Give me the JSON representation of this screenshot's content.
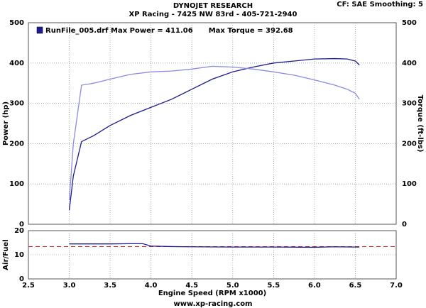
{
  "header": {
    "title": "DYNOJET RESEARCH",
    "subtitle": "XP Racing - 7425 NW 83rd - 405-721-2940",
    "settings": "CF: SAE  Smoothing: 5"
  },
  "footer": "www.xp-racing.com",
  "chart_data": [
    {
      "type": "line",
      "ylabel": "Power (hp)",
      "y2label": "Torque (ft-lbs)",
      "xlim": [
        2.5,
        7.0
      ],
      "ylim": [
        0,
        500
      ],
      "yticks": [
        0,
        100,
        200,
        300,
        400,
        500
      ],
      "y2lim": [
        0,
        500
      ],
      "y2ticks": [
        0,
        100,
        200,
        300,
        400,
        500
      ],
      "grid": true,
      "x": [
        3.0,
        3.05,
        3.15,
        3.3,
        3.5,
        3.75,
        4.0,
        4.25,
        4.5,
        4.75,
        5.0,
        5.25,
        5.5,
        5.75,
        6.0,
        6.25,
        6.4,
        6.5,
        6.55
      ],
      "series": [
        {
          "name": "RunFile_005.drf Max Power = 411.06",
          "color": "#1c1c8c",
          "values": [
            35,
            120,
            205,
            220,
            245,
            270,
            290,
            310,
            335,
            360,
            378,
            390,
            400,
            405,
            410,
            411,
            410,
            405,
            395
          ]
        },
        {
          "name": "Max Torque = 392.68",
          "color": "#8a8ae0",
          "axis": "y2",
          "values": [
            60,
            200,
            345,
            350,
            360,
            372,
            378,
            380,
            385,
            392,
            390,
            385,
            378,
            370,
            358,
            345,
            335,
            325,
            310
          ]
        }
      ]
    },
    {
      "type": "line",
      "ylabel": "Air/Fuel",
      "xlabel": "Engine Speed (RPM x1000)",
      "xlim": [
        2.5,
        7.0
      ],
      "xticks": [
        2.5,
        {
          "value": 3,
          "label": "3.0"
        },
        3.5,
        {
          "value": 4,
          "label": "4.0"
        },
        4.5,
        {
          "value": 5,
          "label": "5.0"
        },
        5.5,
        {
          "value": 6,
          "label": "6.0"
        },
        6.5,
        {
          "value": 7,
          "label": "7.0"
        }
      ],
      "ylim": [
        0,
        20
      ],
      "yticks": [
        0,
        10,
        20
      ],
      "grid": true,
      "reference": 13.4,
      "reference_color": "#cc2222",
      "x": [
        3.0,
        3.25,
        3.5,
        3.75,
        3.9,
        4.0,
        4.25,
        4.5,
        5.0,
        5.5,
        6.0,
        6.25,
        6.5,
        6.55
      ],
      "series": [
        {
          "color": "#1c1c8c",
          "values": [
            14.5,
            14.5,
            14.5,
            14.6,
            14.6,
            13.6,
            13.4,
            13.3,
            13.2,
            13.2,
            13.1,
            13.3,
            13.2,
            13.2
          ]
        }
      ]
    }
  ]
}
